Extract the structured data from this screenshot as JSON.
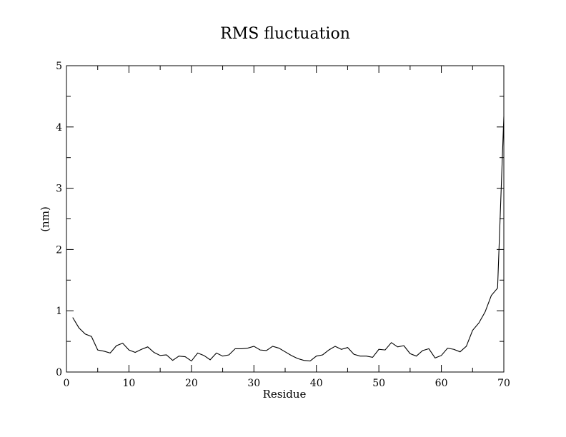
{
  "chart_data": {
    "type": "line",
    "title": "RMS fluctuation",
    "xlabel": "Residue",
    "ylabel": "(nm)",
    "xlim": [
      0,
      70
    ],
    "ylim": [
      0,
      5
    ],
    "xticks": [
      0,
      10,
      20,
      30,
      40,
      50,
      60,
      70
    ],
    "yticks": [
      0,
      1,
      2,
      3,
      4,
      5
    ],
    "grid": false,
    "series": [
      {
        "color": "#000000",
        "x": [
          1,
          2,
          3,
          4,
          5,
          6,
          7,
          8,
          9,
          10,
          11,
          12,
          13,
          14,
          15,
          16,
          17,
          18,
          19,
          20,
          21,
          22,
          23,
          24,
          25,
          26,
          27,
          28,
          29,
          30,
          31,
          32,
          33,
          34,
          35,
          36,
          37,
          38,
          39,
          40,
          41,
          42,
          43,
          44,
          45,
          46,
          47,
          48,
          49,
          50,
          51,
          52,
          53,
          54,
          55,
          56,
          57,
          58,
          59,
          60,
          61,
          62,
          63,
          64,
          65,
          66,
          67,
          68,
          69,
          70
        ],
        "y": [
          0.89,
          0.72,
          0.62,
          0.58,
          0.36,
          0.34,
          0.31,
          0.43,
          0.47,
          0.36,
          0.32,
          0.37,
          0.41,
          0.32,
          0.27,
          0.28,
          0.19,
          0.26,
          0.25,
          0.18,
          0.31,
          0.27,
          0.2,
          0.31,
          0.26,
          0.28,
          0.38,
          0.38,
          0.39,
          0.42,
          0.36,
          0.35,
          0.42,
          0.39,
          0.33,
          0.27,
          0.22,
          0.19,
          0.18,
          0.26,
          0.28,
          0.36,
          0.42,
          0.37,
          0.4,
          0.29,
          0.26,
          0.26,
          0.24,
          0.37,
          0.36,
          0.48,
          0.41,
          0.43,
          0.3,
          0.26,
          0.35,
          0.38,
          0.23,
          0.27,
          0.39,
          0.37,
          0.33,
          0.42,
          0.68,
          0.8,
          0.98,
          1.25,
          1.37,
          4.17
        ]
      }
    ]
  }
}
